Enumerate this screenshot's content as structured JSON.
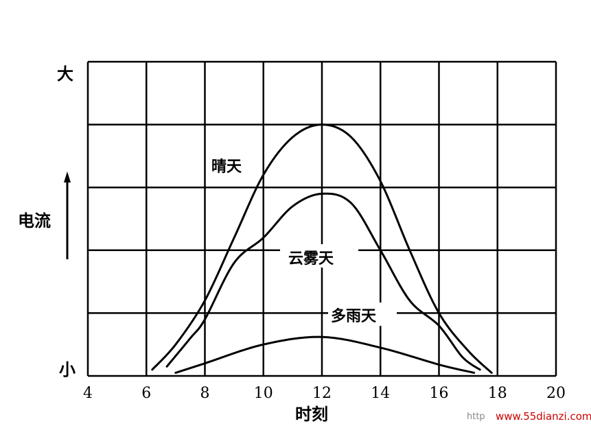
{
  "chart_data": {
    "type": "line",
    "xlabel": "时刻",
    "ylabel": "电流",
    "y_top_label": "大",
    "y_bottom_label": "小",
    "xlim": [
      4,
      20
    ],
    "x_ticks": [
      4,
      6,
      8,
      10,
      12,
      14,
      16,
      18,
      20
    ],
    "ylim": [
      0,
      5
    ],
    "grid": true,
    "series": [
      {
        "name": "晴天",
        "x": [
          6.2,
          7,
          8,
          9,
          10,
          11,
          12,
          13,
          14,
          15,
          16,
          17,
          17.8
        ],
        "y": [
          0.1,
          0.5,
          1.2,
          2.2,
          3.2,
          3.8,
          4.0,
          3.8,
          3.1,
          2.0,
          1.0,
          0.4,
          0.05
        ]
      },
      {
        "name": "云雾天",
        "x": [
          6.7,
          7.5,
          8,
          9,
          10,
          11,
          12,
          13,
          14,
          15,
          16,
          16.8,
          17.4
        ],
        "y": [
          0.15,
          0.6,
          0.9,
          1.8,
          2.2,
          2.7,
          2.9,
          2.75,
          2.0,
          1.2,
          0.8,
          0.3,
          0.1
        ]
      },
      {
        "name": "多雨天",
        "x": [
          7,
          8,
          10,
          12,
          14,
          16,
          17.2
        ],
        "y": [
          0.05,
          0.2,
          0.5,
          0.62,
          0.45,
          0.18,
          0.05
        ]
      }
    ]
  },
  "watermark": {
    "prefix": "http",
    "url": "www.55dianzi.com"
  }
}
